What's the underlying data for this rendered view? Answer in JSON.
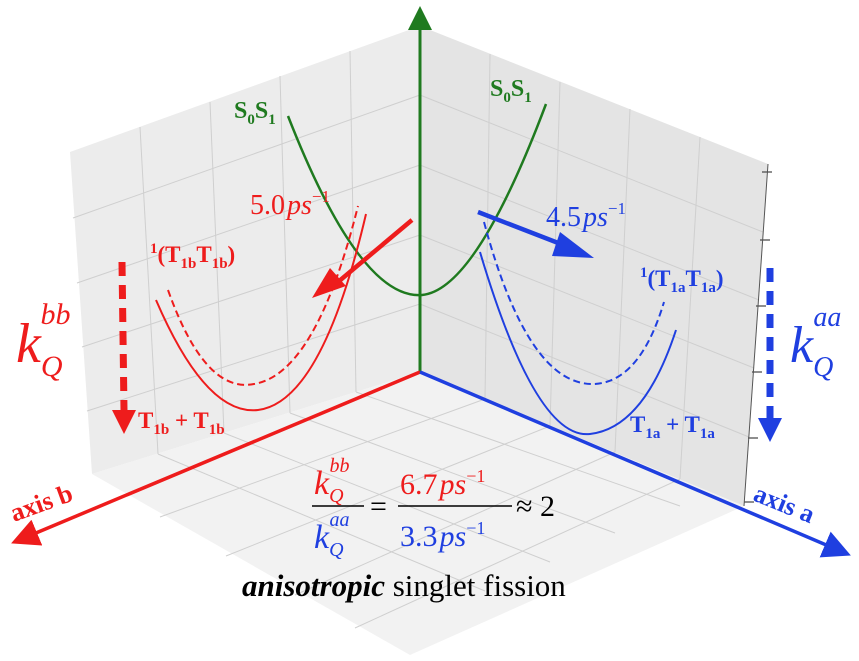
{
  "colors": {
    "green": "#1f7a1f",
    "red": "#ee1c1c",
    "blue": "#1f3fe0",
    "pane": "#ebebeb",
    "grid": "#c8c8c8"
  },
  "labels": {
    "s0s1_left": {
      "main": "S",
      "sub1": "0",
      "main2": "S",
      "sub2": "1"
    },
    "s0s1_right": {
      "main": "S",
      "sub1": "0",
      "main2": "S",
      "sub2": "1"
    },
    "rate_red": {
      "value": "5.0",
      "unit": "ps",
      "exp": "−1"
    },
    "rate_blue": {
      "value": "4.5",
      "unit": "ps",
      "exp": "−1"
    },
    "tt_b": {
      "sup": "1",
      "open": "(T",
      "sub1": "1b",
      "mid": "T",
      "sub2": "1b",
      "close": ")"
    },
    "tt_a": {
      "sup": "1",
      "open": "(T",
      "sub1": "1a",
      "mid": "T",
      "sub2": "1a",
      "close": ")"
    },
    "kq_bb": {
      "k": "k",
      "sub": "Q",
      "sup": "bb"
    },
    "kq_aa": {
      "k": "k",
      "sub": "Q",
      "sup": "aa"
    },
    "t_sum_b": {
      "t1": "T",
      "s1": "1b",
      "plus": " + ",
      "t2": "T",
      "s2": "1b"
    },
    "t_sum_a": {
      "t1": "T",
      "s1": "1a",
      "plus": " + ",
      "t2": "T",
      "s2": "1a"
    },
    "axis_b": "axis b",
    "axis_a": "axis a",
    "ratio": {
      "num_k": "k",
      "num_sub": "Q",
      "num_sup": "bb",
      "den_k": "k",
      "den_sub": "Q",
      "den_sup": "aa",
      "eq": "=",
      "rnum_val": "6.7",
      "rnum_unit": "ps",
      "rnum_exp": "−1",
      "rden_val": "3.3",
      "rden_unit": "ps",
      "rden_exp": "−1",
      "approx": "≈ 2"
    },
    "caption": {
      "bold": "anisotropic",
      "rest": " singlet fission"
    }
  }
}
